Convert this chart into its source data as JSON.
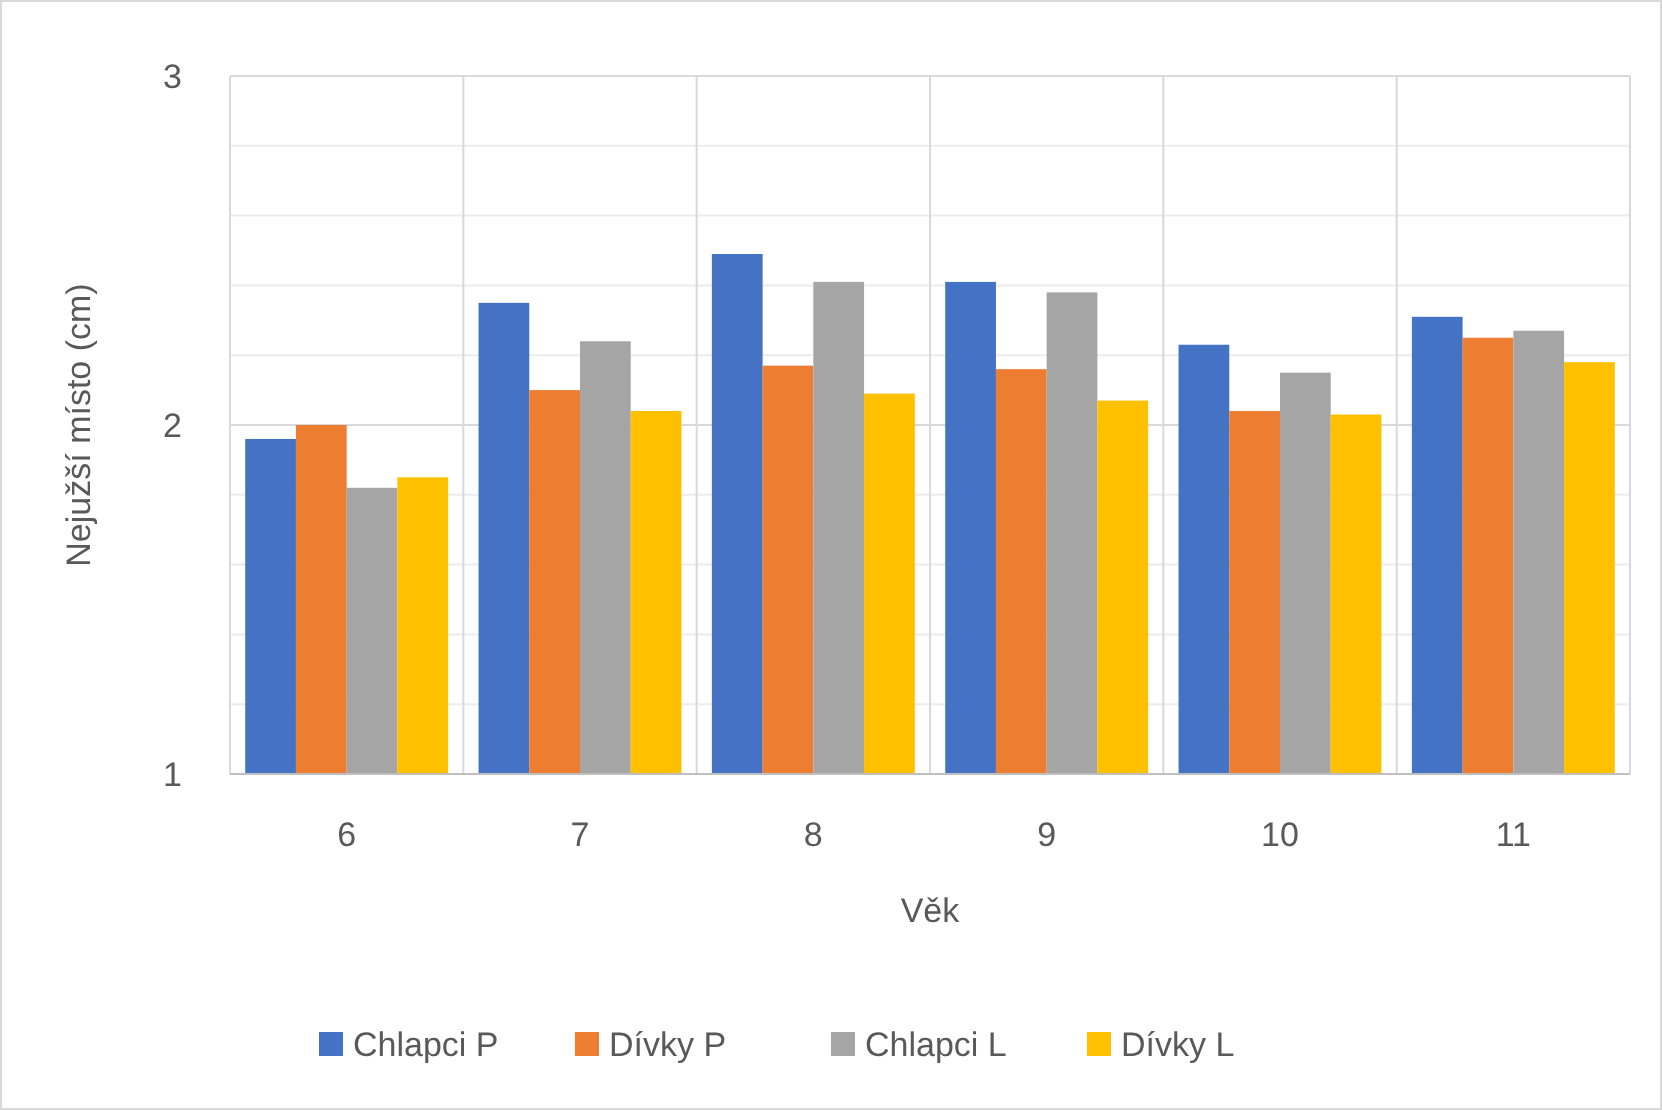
{
  "chart_data": {
    "type": "bar",
    "xlabel": "Věk",
    "ylabel": "Nejužší místo (cm)",
    "categories": [
      "6",
      "7",
      "8",
      "9",
      "10",
      "11"
    ],
    "series": [
      {
        "name": "Chlapci P",
        "color": "#4472c4",
        "values": [
          1.96,
          2.35,
          2.49,
          2.41,
          2.23,
          2.31
        ]
      },
      {
        "name": "Dívky P",
        "color": "#ed7d31",
        "values": [
          2.0,
          2.1,
          2.17,
          2.16,
          2.04,
          2.25
        ]
      },
      {
        "name": "Chlapci L",
        "color": "#a5a5a5",
        "values": [
          1.82,
          2.24,
          2.41,
          2.38,
          2.15,
          2.27
        ]
      },
      {
        "name": "Dívky L",
        "color": "#ffc000",
        "values": [
          1.85,
          2.04,
          2.09,
          2.07,
          2.03,
          2.18
        ]
      }
    ],
    "ylim": [
      1,
      3
    ],
    "yticks": [
      1,
      {
        "value": 1.2,
        "label": null
      },
      {
        "value": 1.4,
        "label": null
      },
      {
        "value": 1.6,
        "label": null
      },
      {
        "value": 1.8,
        "label": null
      },
      2,
      {
        "value": 2.2,
        "label": null
      },
      {
        "value": 2.4,
        "label": null
      },
      {
        "value": 2.6,
        "label": null
      },
      {
        "value": 2.8,
        "label": null
      },
      3
    ],
    "grid": true,
    "legend": "bottom"
  }
}
